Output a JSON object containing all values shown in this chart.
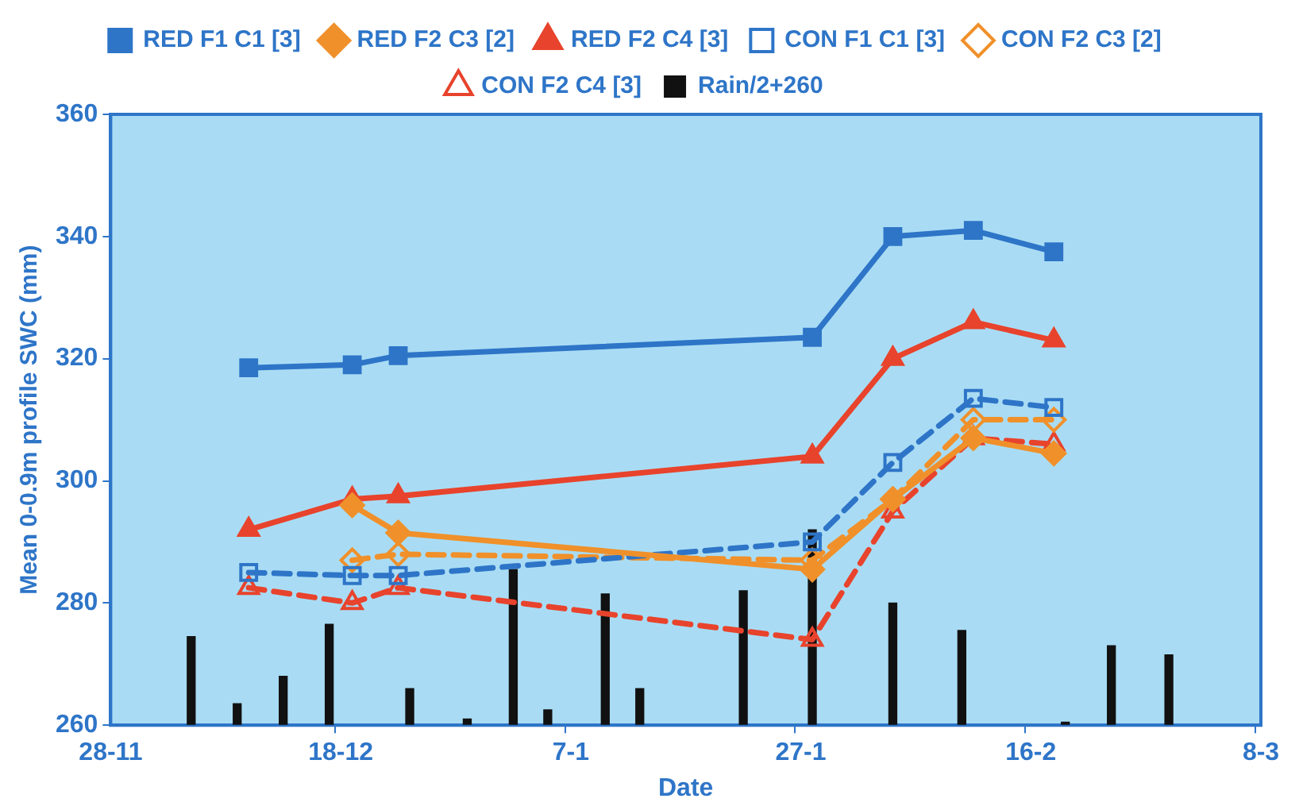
{
  "chart_data": {
    "type": "line",
    "xlabel": "Date",
    "ylabel": "Mean 0-0.9m profile SWC (mm)",
    "categories": [
      "28-11",
      null,
      null,
      null,
      null,
      null,
      null,
      null,
      null,
      null,
      null,
      null,
      null,
      null,
      null,
      null,
      null,
      null,
      null,
      null,
      "18-12",
      null,
      null,
      null,
      null,
      null,
      null,
      null,
      null,
      null,
      null,
      null,
      null,
      null,
      null,
      null,
      null,
      null,
      null,
      null,
      "7-1",
      null,
      null,
      null,
      null,
      null,
      null,
      null,
      null,
      null,
      null,
      null,
      null,
      null,
      null,
      null,
      null,
      null,
      null,
      null,
      "27-1",
      null,
      null,
      null,
      null,
      null,
      null,
      null,
      null,
      null,
      null,
      null,
      null,
      null,
      null,
      null,
      null,
      null,
      null,
      null,
      "16-2",
      null,
      null,
      null,
      null,
      null,
      null,
      null,
      null,
      null,
      null,
      null,
      null,
      null,
      null,
      null,
      null,
      null,
      null,
      null,
      "8-3"
    ],
    "ylim": [
      260,
      360
    ],
    "yticks": [
      260,
      280,
      300,
      320,
      340,
      360
    ],
    "legend": "top",
    "grid": false,
    "series": [
      {
        "name": "RED F1 C1 [3]",
        "color": "#2e75c8",
        "marker": "square",
        "line_style": "solid",
        "values": [
          null,
          null,
          null,
          null,
          null,
          null,
          null,
          null,
          null,
          null,
          null,
          null,
          318.5,
          null,
          null,
          null,
          null,
          null,
          null,
          null,
          null,
          319,
          null,
          null,
          null,
          320.5,
          null,
          null,
          null,
          null,
          null,
          null,
          null,
          null,
          null,
          null,
          null,
          null,
          null,
          null,
          null,
          null,
          null,
          null,
          null,
          null,
          null,
          null,
          null,
          null,
          null,
          null,
          null,
          null,
          null,
          null,
          null,
          null,
          null,
          null,
          null,
          323.5,
          null,
          null,
          null,
          null,
          null,
          null,
          340,
          null,
          null,
          null,
          null,
          null,
          null,
          341,
          null,
          null,
          null,
          null,
          null,
          null,
          337.5,
          null,
          null,
          null,
          null,
          null,
          null,
          null,
          null,
          null,
          null,
          null,
          null,
          null,
          null,
          null,
          null,
          null,
          null
        ]
      },
      {
        "name": "RED F2 C3 [2]",
        "color": "#f0902a",
        "marker": "diamond",
        "line_style": "solid",
        "values": [
          null,
          null,
          null,
          null,
          null,
          null,
          null,
          null,
          null,
          null,
          null,
          null,
          null,
          null,
          null,
          null,
          null,
          null,
          null,
          null,
          null,
          296,
          null,
          null,
          null,
          291.5,
          null,
          null,
          null,
          null,
          null,
          null,
          null,
          null,
          null,
          null,
          null,
          null,
          null,
          null,
          null,
          null,
          null,
          null,
          null,
          null,
          null,
          null,
          null,
          null,
          null,
          null,
          null,
          null,
          null,
          null,
          null,
          null,
          null,
          null,
          null,
          285.5,
          null,
          null,
          null,
          null,
          null,
          null,
          297,
          null,
          null,
          null,
          null,
          null,
          null,
          307,
          null,
          null,
          null,
          null,
          null,
          null,
          304.5,
          null,
          null,
          null,
          null,
          null,
          null,
          null,
          null,
          null,
          null,
          null,
          null,
          null,
          null,
          null,
          null,
          null,
          null
        ]
      },
      {
        "name": "RED F2 C4 [3]",
        "color": "#e8432c",
        "marker": "triangle",
        "line_style": "solid",
        "values": [
          null,
          null,
          null,
          null,
          null,
          null,
          null,
          null,
          null,
          null,
          null,
          null,
          292,
          null,
          null,
          null,
          null,
          null,
          null,
          null,
          null,
          297,
          null,
          null,
          null,
          297.5,
          null,
          null,
          null,
          null,
          null,
          null,
          null,
          null,
          null,
          null,
          null,
          null,
          null,
          null,
          null,
          null,
          null,
          null,
          null,
          null,
          null,
          null,
          null,
          null,
          null,
          null,
          null,
          null,
          null,
          null,
          null,
          null,
          null,
          null,
          null,
          304,
          null,
          null,
          null,
          null,
          null,
          null,
          320,
          null,
          null,
          null,
          null,
          null,
          null,
          326,
          null,
          null,
          null,
          null,
          null,
          null,
          323,
          null,
          null,
          null,
          null,
          null,
          null,
          null,
          null,
          null,
          null,
          null,
          null,
          null,
          null,
          null,
          null,
          null,
          null
        ]
      },
      {
        "name": "CON F1 C1 [3]",
        "color": "#2e75c8",
        "marker": "square",
        "line_style": "dashed",
        "values": [
          null,
          null,
          null,
          null,
          null,
          null,
          null,
          null,
          null,
          null,
          null,
          null,
          285,
          null,
          null,
          null,
          null,
          null,
          null,
          null,
          null,
          284.5,
          null,
          null,
          null,
          284.5,
          null,
          null,
          null,
          null,
          null,
          null,
          null,
          null,
          null,
          null,
          null,
          null,
          null,
          null,
          null,
          null,
          null,
          null,
          null,
          null,
          null,
          null,
          null,
          null,
          null,
          null,
          null,
          null,
          null,
          null,
          null,
          null,
          null,
          null,
          null,
          290,
          null,
          null,
          null,
          null,
          null,
          null,
          303,
          null,
          null,
          null,
          null,
          null,
          null,
          313.5,
          null,
          null,
          null,
          null,
          null,
          null,
          312,
          null,
          null,
          null,
          null,
          null,
          null,
          null,
          null,
          null,
          null,
          null,
          null,
          null,
          null,
          null,
          null,
          null,
          null
        ]
      },
      {
        "name": "CON F2 C3 [2]",
        "color": "#f0902a",
        "marker": "diamond",
        "line_style": "dashed",
        "values": [
          null,
          null,
          null,
          null,
          null,
          null,
          null,
          null,
          null,
          null,
          null,
          null,
          null,
          null,
          null,
          null,
          null,
          null,
          null,
          null,
          null,
          287,
          null,
          null,
          null,
          288,
          null,
          null,
          null,
          null,
          null,
          null,
          null,
          null,
          null,
          null,
          null,
          null,
          null,
          null,
          null,
          null,
          null,
          null,
          null,
          null,
          null,
          null,
          null,
          null,
          null,
          null,
          null,
          null,
          null,
          null,
          null,
          null,
          null,
          null,
          null,
          287,
          null,
          null,
          null,
          null,
          null,
          null,
          297,
          null,
          null,
          null,
          null,
          null,
          null,
          310,
          null,
          null,
          null,
          null,
          null,
          null,
          310,
          null,
          null,
          null,
          null,
          null,
          null,
          null,
          null,
          null,
          null,
          null,
          null,
          null,
          null,
          null,
          null,
          null,
          null
        ]
      },
      {
        "name": "CON F2 C4 [3]",
        "color": "#e8432c",
        "marker": "triangle",
        "line_style": "dashed",
        "values": [
          null,
          null,
          null,
          null,
          null,
          null,
          null,
          null,
          null,
          null,
          null,
          null,
          282.5,
          null,
          null,
          null,
          null,
          null,
          null,
          null,
          null,
          280,
          null,
          null,
          null,
          282.5,
          null,
          null,
          null,
          null,
          null,
          null,
          null,
          null,
          null,
          null,
          null,
          null,
          null,
          null,
          null,
          null,
          null,
          null,
          null,
          null,
          null,
          null,
          null,
          null,
          null,
          null,
          null,
          null,
          null,
          null,
          null,
          null,
          null,
          null,
          null,
          274,
          null,
          null,
          null,
          null,
          null,
          null,
          295,
          null,
          null,
          null,
          null,
          null,
          null,
          307,
          null,
          null,
          null,
          null,
          null,
          null,
          306,
          null,
          null,
          null,
          null,
          null,
          null,
          null,
          null,
          null,
          null,
          null,
          null,
          null,
          null,
          null,
          null,
          null,
          null
        ]
      },
      {
        "name": "Rain/2+260",
        "type": "bar",
        "color": "#111111",
        "values": [
          null,
          null,
          null,
          null,
          null,
          null,
          null,
          274.5,
          null,
          null,
          null,
          263.5,
          null,
          null,
          null,
          268,
          null,
          null,
          null,
          276.5,
          null,
          null,
          null,
          null,
          null,
          null,
          266,
          null,
          null,
          null,
          null,
          261,
          null,
          null,
          null,
          285.5,
          null,
          null,
          262.5,
          null,
          null,
          null,
          null,
          281.5,
          null,
          null,
          266,
          null,
          null,
          null,
          null,
          null,
          null,
          null,
          null,
          282,
          null,
          null,
          null,
          null,
          null,
          292,
          null,
          null,
          null,
          null,
          null,
          null,
          280,
          null,
          null,
          null,
          null,
          null,
          275.5,
          null,
          null,
          null,
          null,
          null,
          null,
          null,
          null,
          260.5,
          null,
          null,
          null,
          273,
          null,
          null,
          null,
          null,
          271.5,
          null,
          null,
          null,
          null,
          null,
          null,
          null,
          null
        ]
      }
    ]
  }
}
